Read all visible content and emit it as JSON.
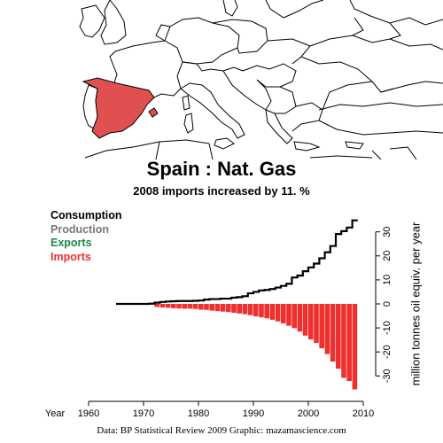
{
  "map": {
    "highlight_color": "#e05050",
    "highlighted_country": "Spain"
  },
  "chart_data": {
    "type": "bar",
    "title": "Spain :  Nat. Gas",
    "subtitle": "2008 imports increased by 11. %",
    "legend": [
      {
        "label": "Consumption",
        "color": "#000000"
      },
      {
        "label": "Production",
        "color": "#777777"
      },
      {
        "label": "Exports",
        "color": "#1a8a4a"
      },
      {
        "label": "Imports",
        "color": "#ee3030"
      }
    ],
    "legend_position": "top-left",
    "xlabel": "Year",
    "ylabel": "million tonnes oil equiv. per year",
    "xlim": [
      1960,
      2010
    ],
    "ylim": [
      -36,
      36
    ],
    "x_ticks": [
      1960,
      1970,
      1980,
      1990,
      2000,
      2010
    ],
    "y_ticks": [
      30,
      20,
      10,
      0,
      -10,
      -20,
      -30
    ],
    "years": [
      1965,
      1966,
      1967,
      1968,
      1969,
      1970,
      1971,
      1972,
      1973,
      1974,
      1975,
      1976,
      1977,
      1978,
      1979,
      1980,
      1981,
      1982,
      1983,
      1984,
      1985,
      1986,
      1987,
      1988,
      1989,
      1990,
      1991,
      1992,
      1993,
      1994,
      1995,
      1996,
      1997,
      1998,
      1999,
      2000,
      2001,
      2002,
      2003,
      2004,
      2005,
      2006,
      2007,
      2008
    ],
    "series": [
      {
        "name": "Consumption",
        "kind": "step-line",
        "color": "#000000",
        "values": [
          0,
          0,
          0,
          0,
          0,
          0,
          0.1,
          0.5,
          0.8,
          1.0,
          1.1,
          1.2,
          1.2,
          1.2,
          1.3,
          1.4,
          1.8,
          2.0,
          2.0,
          2.2,
          2.2,
          2.6,
          2.8,
          3.2,
          4.4,
          5.0,
          5.6,
          5.8,
          6.2,
          6.8,
          7.5,
          8.4,
          11.0,
          11.8,
          13.6,
          15.2,
          16.8,
          19.0,
          21.5,
          24.1,
          29.1,
          30.3,
          31.8,
          34.8
        ]
      },
      {
        "name": "Imports",
        "kind": "bars",
        "color": "#ee3030",
        "values": [
          0,
          0,
          0,
          0,
          0,
          0,
          0,
          -1.3,
          -1.5,
          -1.6,
          -1.8,
          -1.9,
          -2.0,
          -2.0,
          -2.1,
          -2.4,
          -2.5,
          -2.8,
          -3.0,
          -3.2,
          -3.4,
          -3.7,
          -4.0,
          -4.3,
          -4.7,
          -5.2,
          -5.6,
          -6.0,
          -6.6,
          -7.3,
          -8.1,
          -9.1,
          -10.1,
          -11.5,
          -13.2,
          -14.8,
          -16.3,
          -18.5,
          -20.9,
          -24.0,
          -27.0,
          -30.8,
          -32.1,
          -35.6
        ]
      }
    ]
  },
  "credit": "Data: BP Statistical Review 2009    Graphic: mazamascience.com"
}
